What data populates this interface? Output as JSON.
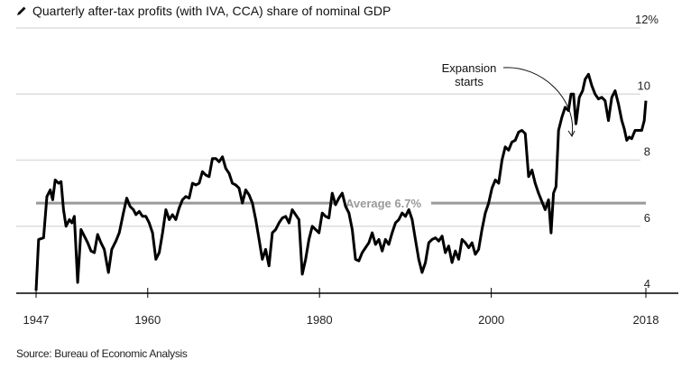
{
  "header": {
    "title": "Quarterly after-tax profits (with IVA, CCA) share of nominal GDP",
    "title_icon": "pencil-icon"
  },
  "footer": {
    "source": "Source: Bureau of Economic Analysis"
  },
  "chart_data": {
    "type": "line",
    "title": "Quarterly after-tax profits (with IVA, CCA) share of nominal GDP",
    "xlabel": "",
    "ylabel": "",
    "xlim": [
      1947,
      2018
    ],
    "ylim": [
      4,
      12
    ],
    "x_ticks": [
      1947,
      1960,
      1980,
      2000,
      2018
    ],
    "x_tick_labels": [
      "1947",
      "1960",
      "1980",
      "2000",
      "2018"
    ],
    "y_ticks": [
      4,
      6,
      8,
      10,
      12
    ],
    "y_tick_labels": [
      "4",
      "6",
      "8",
      "10",
      "12%"
    ],
    "grid": true,
    "legend": "none",
    "colors": {
      "series": "#000000",
      "average": "#9a9a9a",
      "grid": "#dddddd",
      "axis": "#000000"
    },
    "reference_line": {
      "label": "Average 6.7%",
      "value": 6.7
    },
    "annotations": [
      {
        "text_lines": [
          "Expansion",
          "starts"
        ],
        "points_to_year": 2009.5,
        "points_to_value": 8.9
      }
    ],
    "series": [
      {
        "name": "After-tax profits share of GDP (%)",
        "points": [
          [
            1947.0,
            4.05
          ],
          [
            1947.3,
            5.6
          ],
          [
            1947.9,
            5.65
          ],
          [
            1948.3,
            6.9
          ],
          [
            1948.7,
            7.1
          ],
          [
            1949.0,
            6.8
          ],
          [
            1949.3,
            7.4
          ],
          [
            1949.7,
            7.3
          ],
          [
            1950.0,
            7.35
          ],
          [
            1950.3,
            6.5
          ],
          [
            1950.6,
            6.0
          ],
          [
            1951.0,
            6.2
          ],
          [
            1951.3,
            6.1
          ],
          [
            1951.6,
            6.3
          ],
          [
            1952.0,
            4.3
          ],
          [
            1952.4,
            5.9
          ],
          [
            1952.8,
            5.7
          ],
          [
            1953.2,
            5.5
          ],
          [
            1953.6,
            5.25
          ],
          [
            1954.0,
            5.2
          ],
          [
            1954.4,
            5.75
          ],
          [
            1954.8,
            5.5
          ],
          [
            1955.2,
            5.3
          ],
          [
            1955.7,
            4.6
          ],
          [
            1956.1,
            5.3
          ],
          [
            1956.6,
            5.55
          ],
          [
            1957.0,
            5.8
          ],
          [
            1957.5,
            6.4
          ],
          [
            1957.9,
            6.85
          ],
          [
            1958.3,
            6.6
          ],
          [
            1958.7,
            6.5
          ],
          [
            1959.0,
            6.35
          ],
          [
            1959.4,
            6.45
          ],
          [
            1959.8,
            6.3
          ],
          [
            1960.2,
            6.3
          ],
          [
            1960.6,
            6.1
          ],
          [
            1961.0,
            5.8
          ],
          [
            1961.4,
            5.0
          ],
          [
            1961.8,
            5.2
          ],
          [
            1962.2,
            5.8
          ],
          [
            1962.6,
            6.5
          ],
          [
            1963.0,
            6.2
          ],
          [
            1963.4,
            6.35
          ],
          [
            1963.8,
            6.2
          ],
          [
            1964.2,
            6.55
          ],
          [
            1964.6,
            6.8
          ],
          [
            1965.0,
            6.9
          ],
          [
            1965.4,
            6.85
          ],
          [
            1965.8,
            7.3
          ],
          [
            1966.2,
            7.25
          ],
          [
            1966.6,
            7.3
          ],
          [
            1967.0,
            7.65
          ],
          [
            1967.4,
            7.55
          ],
          [
            1967.8,
            7.5
          ],
          [
            1968.2,
            8.05
          ],
          [
            1968.6,
            8.05
          ],
          [
            1969.0,
            7.95
          ],
          [
            1969.4,
            8.1
          ],
          [
            1969.8,
            7.75
          ],
          [
            1970.2,
            7.6
          ],
          [
            1970.6,
            7.3
          ],
          [
            1971.0,
            7.25
          ],
          [
            1971.4,
            7.15
          ],
          [
            1971.8,
            6.7
          ],
          [
            1972.2,
            7.1
          ],
          [
            1972.6,
            6.95
          ],
          [
            1973.0,
            6.7
          ],
          [
            1973.4,
            6.2
          ],
          [
            1973.8,
            5.6
          ],
          [
            1974.2,
            5.0
          ],
          [
            1974.6,
            5.3
          ],
          [
            1975.0,
            4.8
          ],
          [
            1975.4,
            5.8
          ],
          [
            1975.8,
            5.9
          ],
          [
            1976.2,
            6.1
          ],
          [
            1976.6,
            6.25
          ],
          [
            1977.0,
            6.3
          ],
          [
            1977.4,
            6.1
          ],
          [
            1977.8,
            6.5
          ],
          [
            1978.2,
            6.35
          ],
          [
            1978.6,
            6.2
          ],
          [
            1979.0,
            4.55
          ],
          [
            1979.4,
            5.0
          ],
          [
            1979.8,
            5.6
          ],
          [
            1980.2,
            6.0
          ],
          [
            1980.6,
            5.9
          ],
          [
            1981.0,
            5.8
          ],
          [
            1981.4,
            6.4
          ],
          [
            1981.8,
            6.3
          ],
          [
            1982.2,
            6.25
          ],
          [
            1982.6,
            7.0
          ],
          [
            1983.0,
            6.65
          ],
          [
            1983.4,
            6.85
          ],
          [
            1983.8,
            7.0
          ],
          [
            1984.2,
            6.6
          ],
          [
            1984.6,
            6.4
          ],
          [
            1985.0,
            5.9
          ],
          [
            1985.4,
            5.0
          ],
          [
            1985.8,
            4.95
          ],
          [
            1986.2,
            5.2
          ],
          [
            1986.6,
            5.35
          ],
          [
            1987.0,
            5.5
          ],
          [
            1987.4,
            5.8
          ],
          [
            1987.8,
            5.45
          ],
          [
            1988.2,
            5.6
          ],
          [
            1988.6,
            5.25
          ],
          [
            1989.0,
            5.6
          ],
          [
            1989.4,
            5.45
          ],
          [
            1989.8,
            5.8
          ],
          [
            1990.2,
            6.1
          ],
          [
            1990.6,
            6.2
          ],
          [
            1991.0,
            6.4
          ],
          [
            1991.4,
            6.3
          ],
          [
            1991.8,
            6.5
          ],
          [
            1992.2,
            6.2
          ],
          [
            1992.6,
            5.6
          ],
          [
            1993.0,
            5.0
          ],
          [
            1993.4,
            4.6
          ],
          [
            1993.8,
            4.9
          ],
          [
            1994.2,
            5.5
          ],
          [
            1994.6,
            5.6
          ],
          [
            1995.0,
            5.65
          ],
          [
            1995.4,
            5.55
          ],
          [
            1995.8,
            5.7
          ],
          [
            1996.2,
            5.2
          ],
          [
            1996.6,
            5.4
          ],
          [
            1997.0,
            4.9
          ],
          [
            1997.4,
            5.25
          ],
          [
            1997.8,
            5.0
          ],
          [
            1998.2,
            5.6
          ],
          [
            1998.6,
            5.5
          ],
          [
            1999.0,
            5.35
          ],
          [
            1999.4,
            5.5
          ],
          [
            1999.8,
            5.15
          ],
          [
            2000.2,
            5.3
          ],
          [
            2000.6,
            5.9
          ],
          [
            2001.0,
            6.4
          ],
          [
            2001.4,
            6.7
          ],
          [
            2001.8,
            7.15
          ],
          [
            2002.2,
            7.4
          ],
          [
            2002.6,
            7.3
          ],
          [
            2003.0,
            8.0
          ],
          [
            2003.4,
            8.4
          ],
          [
            2003.8,
            8.3
          ],
          [
            2004.2,
            8.55
          ],
          [
            2004.6,
            8.6
          ],
          [
            2005.0,
            8.85
          ],
          [
            2005.4,
            8.9
          ],
          [
            2005.8,
            8.8
          ],
          [
            2006.2,
            7.5
          ],
          [
            2006.6,
            7.7
          ],
          [
            2007.0,
            7.3
          ],
          [
            2007.4,
            7.0
          ],
          [
            2007.8,
            6.75
          ],
          [
            2008.2,
            6.5
          ],
          [
            2008.6,
            6.8
          ],
          [
            2008.9,
            5.8
          ],
          [
            2009.2,
            7.0
          ],
          [
            2009.5,
            7.2
          ],
          [
            2009.8,
            8.9
          ],
          [
            2010.2,
            9.3
          ],
          [
            2010.6,
            9.6
          ],
          [
            2011.0,
            9.5
          ],
          [
            2011.3,
            10.0
          ],
          [
            2011.6,
            10.0
          ],
          [
            2011.9,
            9.1
          ],
          [
            2012.3,
            9.9
          ],
          [
            2012.7,
            10.1
          ],
          [
            2013.0,
            10.45
          ],
          [
            2013.4,
            10.6
          ],
          [
            2013.8,
            10.25
          ],
          [
            2014.2,
            10.0
          ],
          [
            2014.6,
            9.85
          ],
          [
            2015.0,
            9.9
          ],
          [
            2015.4,
            9.8
          ],
          [
            2015.8,
            9.2
          ],
          [
            2016.2,
            9.9
          ],
          [
            2016.6,
            10.1
          ],
          [
            2017.0,
            9.7
          ],
          [
            2017.4,
            9.2
          ],
          [
            2017.7,
            8.95
          ],
          [
            2018.0,
            8.6
          ],
          [
            2018.3,
            8.7
          ],
          [
            2018.6,
            8.65
          ],
          [
            2019.0,
            8.9
          ],
          [
            2019.4,
            8.9
          ],
          [
            2019.8,
            8.9
          ],
          [
            2020.1,
            9.2
          ],
          [
            2020.3,
            9.8
          ]
        ]
      }
    ]
  }
}
